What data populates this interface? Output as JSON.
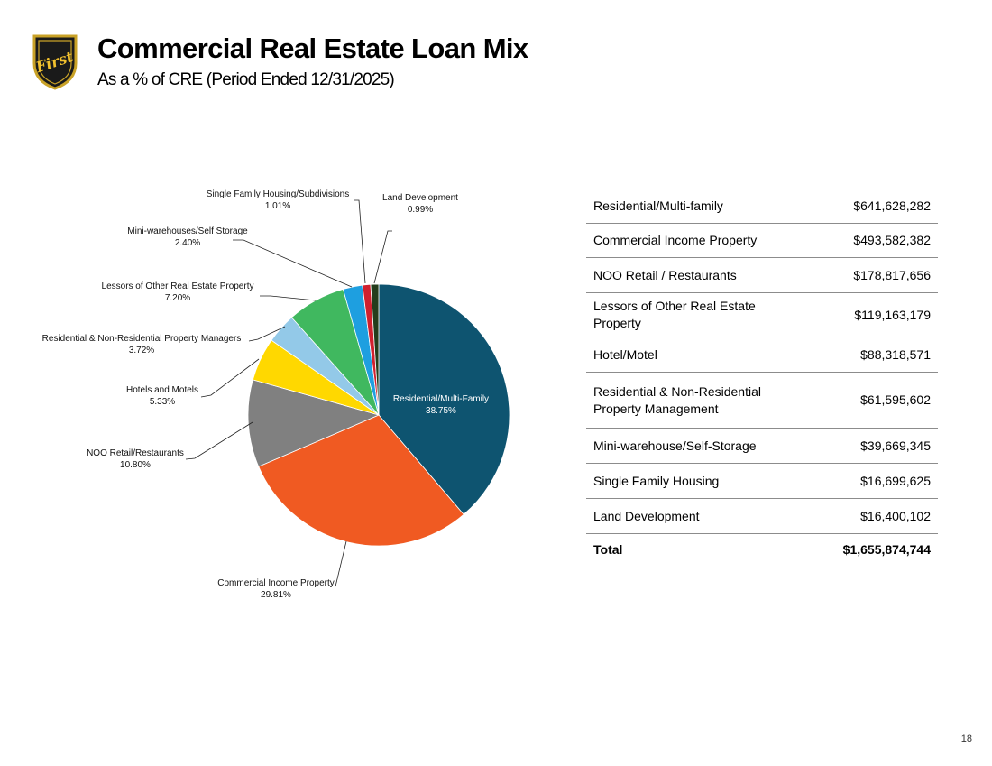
{
  "header": {
    "title": "Commercial Real Estate Loan Mix",
    "subtitle": "As a % of CRE (Period Ended 12/31/2025)",
    "logo_text": "First"
  },
  "chart_data": {
    "type": "pie",
    "slices": [
      {
        "label": "Residential/Multi-Family",
        "percent_label": "38.75%",
        "value": 38.75,
        "color": "#0e5470"
      },
      {
        "label": "Commercial Income Property",
        "percent_label": "29.81%",
        "value": 29.81,
        "color": "#f05a22"
      },
      {
        "label": "NOO Retail/Restaurants",
        "percent_label": "10.80%",
        "value": 10.8,
        "color": "#808080"
      },
      {
        "label": "Hotels and Motels",
        "percent_label": "5.33%",
        "value": 5.33,
        "color": "#ffd800"
      },
      {
        "label": "Residential & Non-Residential Property Managers",
        "percent_label": "3.72%",
        "value": 3.72,
        "color": "#93c9e8"
      },
      {
        "label": "Lessors of Other Real Estate Property",
        "percent_label": "7.20%",
        "value": 7.2,
        "color": "#40b85f"
      },
      {
        "label": "Mini-warehouses/Self Storage",
        "percent_label": "2.40%",
        "value": 2.4,
        "color": "#1e9fe0"
      },
      {
        "label": "Single Family Housing/Subdivisions",
        "percent_label": "1.01%",
        "value": 1.01,
        "color": "#d0202e"
      },
      {
        "label": "Land Development",
        "percent_label": "0.99%",
        "value": 0.99,
        "color": "#243d1c"
      }
    ]
  },
  "table": {
    "rows": [
      {
        "label": "Residential/Multi-family",
        "amount": "$641,628,282"
      },
      {
        "label": "Commercial Income Property",
        "amount": "$493,582,382"
      },
      {
        "label": "NOO Retail / Restaurants",
        "amount": "$178,817,656"
      },
      {
        "label": "Lessors of Other Real Estate Property",
        "amount": "$119,163,179"
      },
      {
        "label": "Hotel/Motel",
        "amount": "$88,318,571"
      },
      {
        "label": "Residential & Non-Residential Property Management",
        "amount": "$61,595,602"
      },
      {
        "label": "Mini-warehouse/Self-Storage",
        "amount": "$39,669,345"
      },
      {
        "label": "Single Family Housing",
        "amount": "$16,699,625"
      },
      {
        "label": "Land Development",
        "amount": "$16,400,102"
      }
    ],
    "total_label": "Total",
    "total_amount": "$1,655,874,744"
  },
  "page_number": "18"
}
